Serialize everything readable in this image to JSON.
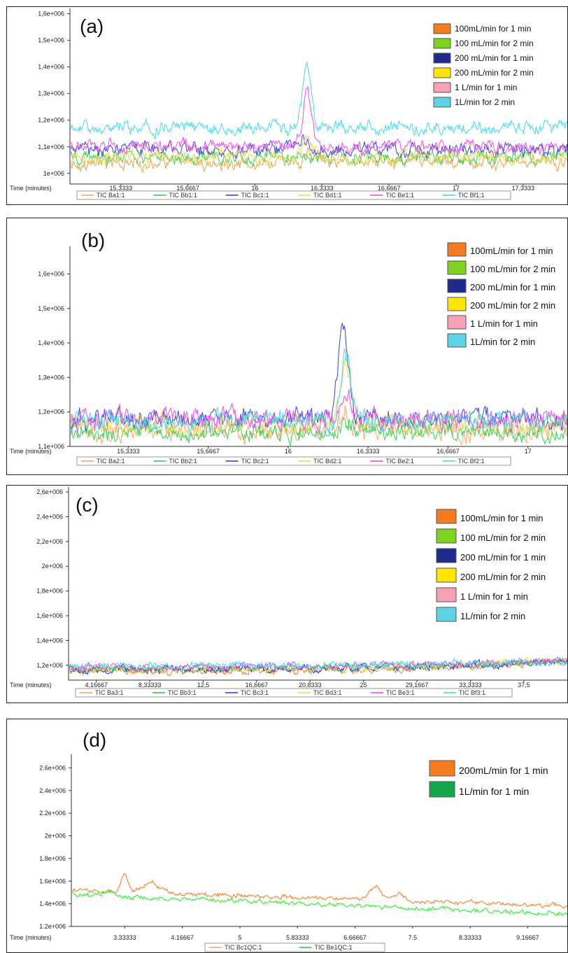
{
  "chart_data": [
    {
      "type": "line",
      "panel_label": "(a)",
      "xlabel": "Time (minutes)",
      "ylim": [
        960000,
        1620000
      ],
      "xlim": [
        15.08,
        17.56
      ],
      "y_ticks": [
        1000000,
        1100000,
        1200000,
        1300000,
        1400000,
        1500000,
        1600000
      ],
      "y_tick_labels": [
        "1e+006",
        "1,1e+006",
        "1,2e+006",
        "1,3e+006",
        "1,4e+006",
        "1,5e+006",
        "1,6e+006"
      ],
      "x_ticks": [
        15.3333,
        15.6667,
        16,
        16.3333,
        16.6667,
        17,
        17.3333
      ],
      "x_tick_labels": [
        "15,3333",
        "15,6667",
        "16",
        "16,3333",
        "16,6667",
        "17",
        "17,3333"
      ],
      "legend": [
        {
          "label": "100mL/min for 1 min",
          "color": "#f47b20"
        },
        {
          "label": "100 mL/min for 2 min",
          "color": "#7ed321"
        },
        {
          "label": "200 mL/min for 1 min",
          "color": "#1f2a8c"
        },
        {
          "label": "200 mL/min for 2 min",
          "color": "#ffe600"
        },
        {
          "label": "1 L/min for 1 min",
          "color": "#f6a1b4"
        },
        {
          "label": "1L/min for 2 min",
          "color": "#5fd3e6"
        }
      ],
      "trace_legend": [
        {
          "label": "TIC Ba1:1",
          "color": "#f4a460"
        },
        {
          "label": "TIC Bb1:1",
          "color": "#22cc44"
        },
        {
          "label": "TIC Bc1:1",
          "color": "#3333cc"
        },
        {
          "label": "TIC Bd1:1",
          "color": "#e8d84a"
        },
        {
          "label": "TIC Be1:1",
          "color": "#e83ee8"
        },
        {
          "label": "TIC Bf1:1",
          "color": "#33d6e6"
        }
      ],
      "series": [
        {
          "color": "#e0a03a",
          "base": 1040000,
          "noise": 18000,
          "peak": {
            "x": 16.26,
            "height": 40000,
            "width": 0.022
          }
        },
        {
          "color": "#22cc44",
          "base": 1060000,
          "noise": 18000,
          "peak": {
            "x": 16.24,
            "height": 20000,
            "width": 0.022
          }
        },
        {
          "color": "#3333cc",
          "base": 1090000,
          "noise": 18000,
          "peak": {
            "x": 16.24,
            "height": 50000,
            "width": 0.022
          }
        },
        {
          "color": "#e8d84a",
          "base": 1060000,
          "noise": 18000,
          "peak": {
            "x": 16.26,
            "height": 90000,
            "width": 0.022
          }
        },
        {
          "color": "#e83ee8",
          "base": 1100000,
          "noise": 18000,
          "peak": {
            "x": 16.26,
            "height": 200000,
            "width": 0.022
          }
        },
        {
          "color": "#33d6e6",
          "base": 1170000,
          "noise": 18000,
          "peak": {
            "x": 16.26,
            "height": 230000,
            "width": 0.022
          }
        }
      ]
    },
    {
      "type": "line",
      "panel_label": "(b)",
      "xlabel": "Time (minutes)",
      "ylim": [
        1100000,
        1680000
      ],
      "xlim": [
        15.09,
        17.17
      ],
      "y_ticks": [
        1100000,
        1200000,
        1300000,
        1400000,
        1500000,
        1600000
      ],
      "y_tick_labels": [
        "1,1e+006",
        "1,2e+006",
        "1,3e+006",
        "1,4e+006",
        "1,5e+006",
        "1,6e+006"
      ],
      "x_ticks": [
        15.3333,
        15.6667,
        16,
        16.3333,
        16.6667,
        17
      ],
      "x_tick_labels": [
        "15,3333",
        "15,6667",
        "16",
        "16,3333",
        "16,6667",
        "17"
      ],
      "legend": [
        {
          "label": "100mL/min for 1 min",
          "color": "#f47b20"
        },
        {
          "label": "100 mL/min for 2 min",
          "color": "#7ed321"
        },
        {
          "label": "200 mL/min for 1 min",
          "color": "#1f2a8c"
        },
        {
          "label": "200 mL/min for 2 min",
          "color": "#ffe600"
        },
        {
          "label": "1 L/min for 1 min",
          "color": "#f6a1b4"
        },
        {
          "label": "1L/min for 2 min",
          "color": "#5fd3e6"
        }
      ],
      "trace_legend": [
        {
          "label": "TIC Ba2:1",
          "color": "#f4a460"
        },
        {
          "label": "TIC Bb2:1",
          "color": "#22cc44"
        },
        {
          "label": "TIC Bc2:1",
          "color": "#3333cc"
        },
        {
          "label": "TIC Bd2:1",
          "color": "#e8d84a"
        },
        {
          "label": "TIC Be2:1",
          "color": "#e83ee8"
        },
        {
          "label": "TIC Bf2:1",
          "color": "#33d6e6"
        }
      ],
      "series": [
        {
          "color": "#f4a460",
          "base": 1150000,
          "noise": 22000,
          "peak": {
            "x": 16.24,
            "height": 40000,
            "width": 0.022
          }
        },
        {
          "color": "#22cc44",
          "base": 1140000,
          "noise": 18000,
          "peak": {
            "x": 16.24,
            "height": 30000,
            "width": 0.022
          }
        },
        {
          "color": "#3333cc",
          "base": 1180000,
          "noise": 20000,
          "peak": {
            "x": 16.23,
            "height": 250000,
            "width": 0.022
          }
        },
        {
          "color": "#e8d84a",
          "base": 1165000,
          "noise": 20000,
          "peak": {
            "x": 16.24,
            "height": 170000,
            "width": 0.022
          }
        },
        {
          "color": "#e83ee8",
          "base": 1180000,
          "noise": 22000,
          "peak": {
            "x": 16.24,
            "height": 70000,
            "width": 0.022
          }
        },
        {
          "color": "#33d6e6",
          "base": 1175000,
          "noise": 20000,
          "peak": {
            "x": 16.24,
            "height": 190000,
            "width": 0.022
          }
        }
      ]
    },
    {
      "type": "line",
      "panel_label": "(c)",
      "xlabel": "Time (minutes)",
      "ylim": [
        1080000,
        2640000
      ],
      "xlim": [
        2.0,
        41.0
      ],
      "y_ticks": [
        1200000,
        1400000,
        1600000,
        1800000,
        2000000,
        2200000,
        2400000,
        2600000
      ],
      "y_tick_labels": [
        "1,2e+006",
        "1,4e+006",
        "1,6e+006",
        "1,8e+006",
        "2e+006",
        "2,2e+006",
        "2,4e+006",
        "2,6e+006"
      ],
      "x_ticks": [
        4.16667,
        8.33333,
        12.5,
        16.6667,
        20.8333,
        25,
        29.1667,
        33.3333,
        37.5
      ],
      "x_tick_labels": [
        "4,16667",
        "8,33333",
        "12,5",
        "16,6667",
        "20,8333",
        "25",
        "29,1667",
        "33,3333",
        "37,5"
      ],
      "legend": [
        {
          "label": "100mL/min for 1 min",
          "color": "#f47b20"
        },
        {
          "label": "100 mL/min for 2 min",
          "color": "#7ed321"
        },
        {
          "label": "200 mL/min for 1 min",
          "color": "#1f2a8c"
        },
        {
          "label": "200 mL/min for 2 min",
          "color": "#ffe600"
        },
        {
          "label": "1 L/min for 1 min",
          "color": "#f6a1b4"
        },
        {
          "label": "1L/min for 2 min",
          "color": "#5fd3e6"
        }
      ],
      "trace_legend": [
        {
          "label": "TIC Ba3:1",
          "color": "#f4a460"
        },
        {
          "label": "TIC Bb3:1",
          "color": "#22cc44"
        },
        {
          "label": "TIC Bc3:1",
          "color": "#3333cc"
        },
        {
          "label": "TIC Bd3:1",
          "color": "#e8d84a"
        },
        {
          "label": "TIC Be3:1",
          "color": "#e83ee8"
        },
        {
          "label": "TIC Bf3:1",
          "color": "#33d6e6"
        }
      ],
      "series": [
        {
          "color": "#f47b20",
          "base": 1150000,
          "noise": 20000,
          "drift": 80000
        },
        {
          "color": "#22cc44",
          "base": 1165000,
          "noise": 20000,
          "drift": 70000
        },
        {
          "color": "#3333cc",
          "base": 1170000,
          "noise": 22000,
          "drift": 60000
        },
        {
          "color": "#e8d84a",
          "base": 1175000,
          "noise": 20000,
          "drift": 60000
        },
        {
          "color": "#e83ee8",
          "base": 1185000,
          "noise": 22000,
          "drift": 50000
        },
        {
          "color": "#33d6e6",
          "base": 1195000,
          "noise": 22000,
          "drift": 40000
        }
      ]
    },
    {
      "type": "line",
      "panel_label": "(d)",
      "xlabel": "Time (minutes)",
      "ylim": [
        1200000,
        2720000
      ],
      "xlim": [
        2.56,
        9.76
      ],
      "y_ticks": [
        1200000,
        1400000,
        1600000,
        1800000,
        2000000,
        2200000,
        2400000,
        2600000
      ],
      "y_tick_labels": [
        "1.2e+006",
        "1.4e+006",
        "1.6e+006",
        "1.8e+006",
        "2e+006",
        "2.2e+006",
        "2.4e+006",
        "2.6e+006"
      ],
      "x_ticks": [
        3.33333,
        4.16667,
        5,
        5.83333,
        6.66667,
        7.5,
        8.33333,
        9.16667
      ],
      "x_tick_labels": [
        "3.33333",
        "4.16667",
        "5",
        "5.83333",
        "6.66667",
        "7.5",
        "8.33333",
        "9.16667"
      ],
      "legend": [
        {
          "label": "200mL/min for 1 min",
          "color": "#f47b20"
        },
        {
          "label": "1L/min for 1 min",
          "color": "#10a84a"
        }
      ],
      "trace_legend": [
        {
          "label": "TIC Bc1QC:1",
          "color": "#f4a460"
        },
        {
          "label": "TIC Be1QC:1",
          "color": "#22cc44"
        }
      ],
      "series": [
        {
          "color": "#f47b20",
          "start": 1520000,
          "end": 1380000,
          "noise": 14000,
          "peaks": [
            {
              "x": 3.33,
              "height": 150000,
              "width": 0.05
            },
            {
              "x": 3.7,
              "height": 90000,
              "width": 0.12
            },
            {
              "x": 6.95,
              "height": 110000,
              "width": 0.09
            },
            {
              "x": 7.3,
              "height": 60000,
              "width": 0.08
            }
          ]
        },
        {
          "color": "#22ee22",
          "start": 1480000,
          "end": 1310000,
          "noise": 14000,
          "peaks": [
            {
              "x": 3.1,
              "height": 40000,
              "width": 0.06
            }
          ]
        }
      ]
    }
  ]
}
